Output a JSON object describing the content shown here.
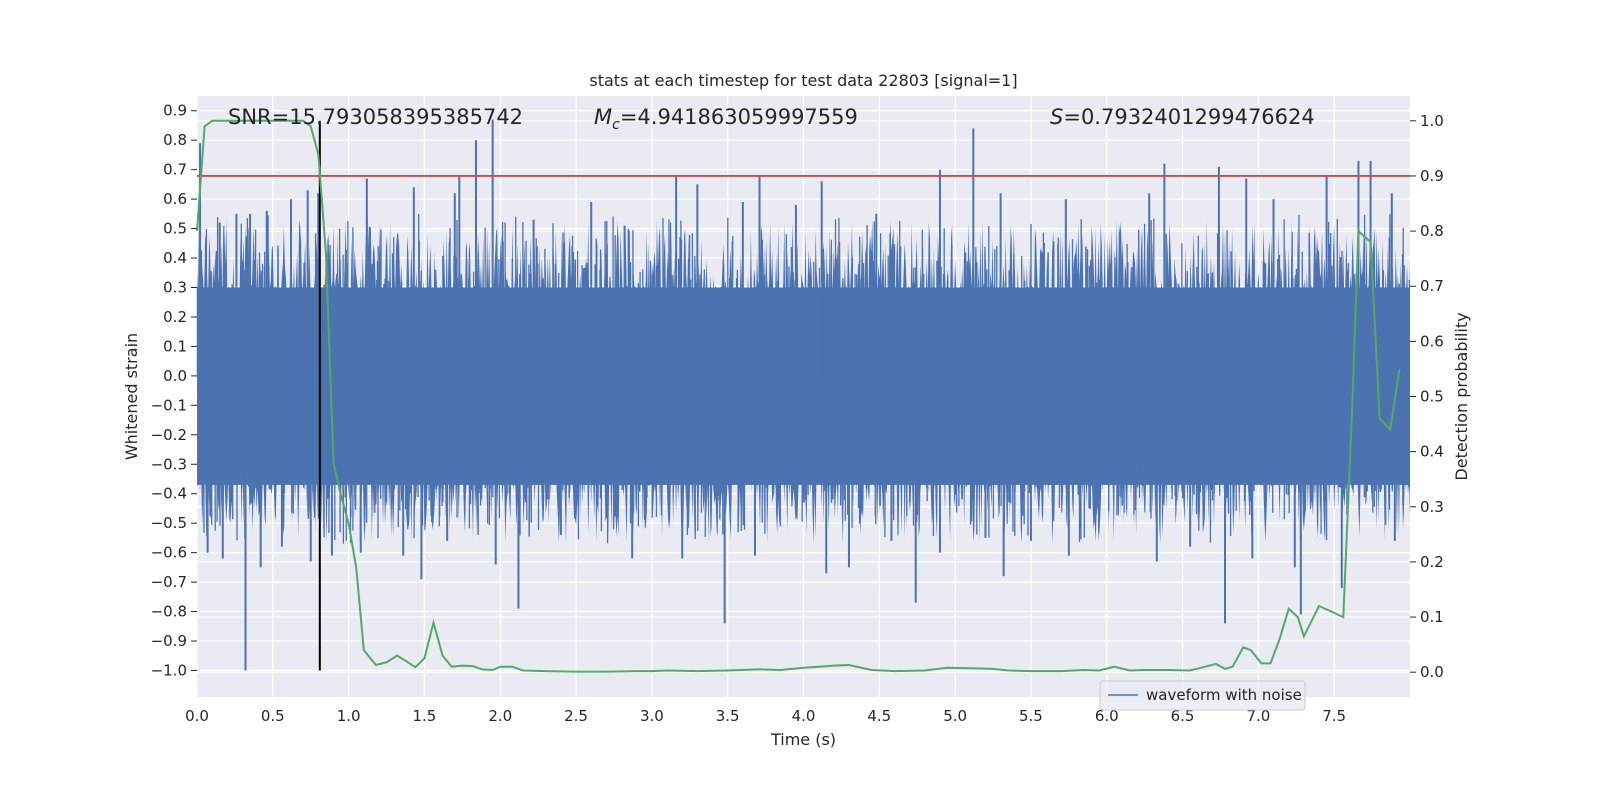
{
  "chart_data": {
    "type": "line",
    "title": "stats at each timestep for test data 22803 [signal=1]",
    "xlabel": "Time (s)",
    "ylabel": "Whitened strain",
    "y2label": "Detection probability",
    "xlim": [
      0,
      8.0
    ],
    "ylim": [
      -1.09,
      0.95
    ],
    "y2lim": [
      -0.045,
      1.045
    ],
    "xticks": [
      0.0,
      0.5,
      1.0,
      1.5,
      2.0,
      2.5,
      3.0,
      3.5,
      4.0,
      4.5,
      5.0,
      5.5,
      6.0,
      6.5,
      7.0,
      7.5
    ],
    "xtick_labels": [
      "0.0",
      "0.5",
      "1.0",
      "1.5",
      "2.0",
      "2.5",
      "3.0",
      "3.5",
      "4.0",
      "4.5",
      "5.0",
      "5.5",
      "6.0",
      "6.5",
      "7.0",
      "7.5"
    ],
    "yticks": [
      0.9,
      0.8,
      0.7,
      0.6,
      0.5,
      0.4,
      0.3,
      0.2,
      0.1,
      0.0,
      -0.1,
      -0.2,
      -0.3,
      -0.4,
      -0.5,
      -0.6,
      -0.7,
      -0.8,
      -0.9,
      -1.0
    ],
    "ytick_labels": [
      "0.9",
      "0.8",
      "0.7",
      "0.6",
      "0.5",
      "0.4",
      "0.3",
      "0.2",
      "0.1",
      "0.0",
      "−0.1",
      "−0.2",
      "−0.3",
      "−0.4",
      "−0.5",
      "−0.6",
      "−0.7",
      "−0.8",
      "−0.9",
      "−1.0"
    ],
    "y2ticks": [
      1.0,
      0.9,
      0.8,
      0.7,
      0.6,
      0.5,
      0.4,
      0.3,
      0.2,
      0.1,
      0.0
    ],
    "y2tick_labels": [
      "1.0",
      "0.9",
      "0.8",
      "0.7",
      "0.6",
      "0.5",
      "0.4",
      "0.3",
      "0.2",
      "0.1",
      "0.0"
    ],
    "annotations": {
      "snr": "SNR=15.793058395385742",
      "mc_symbol": "M",
      "mc_sub": "c",
      "mc_value": "=4.941863059997559",
      "s_symbol": "S",
      "s_value": "=0.7932401299476624"
    },
    "threshold": {
      "value": 0.9,
      "axis": "y2",
      "color": "#c44e52"
    },
    "marker_time": 0.81,
    "series": [
      {
        "name": "waveform with noise",
        "axis": "y1",
        "color": "#4c72b0",
        "envelope_typical": {
          "top": 0.3,
          "bottom": -0.37
        },
        "peaks": [
          [
            0.02,
            0.79
          ],
          [
            0.15,
            0.52
          ],
          [
            0.26,
            0.55
          ],
          [
            0.35,
            0.55
          ],
          [
            0.46,
            0.56
          ],
          [
            0.62,
            0.6
          ],
          [
            0.73,
            0.63
          ],
          [
            0.8,
            0.62
          ],
          [
            1.12,
            0.67
          ],
          [
            1.43,
            0.64
          ],
          [
            1.7,
            0.62
          ],
          [
            1.73,
            0.68
          ],
          [
            1.84,
            0.8
          ],
          [
            1.95,
            0.87
          ],
          [
            2.22,
            0.53
          ],
          [
            2.6,
            0.59
          ],
          [
            2.82,
            0.51
          ],
          [
            3.16,
            0.68
          ],
          [
            3.3,
            0.65
          ],
          [
            3.6,
            0.59
          ],
          [
            3.71,
            0.68
          ],
          [
            3.95,
            0.58
          ],
          [
            4.12,
            0.66
          ],
          [
            4.48,
            0.55
          ],
          [
            4.9,
            0.7
          ],
          [
            5.12,
            0.84
          ],
          [
            5.3,
            0.62
          ],
          [
            5.73,
            0.6
          ],
          [
            6.28,
            0.62
          ],
          [
            6.38,
            0.72
          ],
          [
            6.74,
            0.71
          ],
          [
            6.92,
            0.67
          ],
          [
            7.1,
            0.6
          ],
          [
            7.45,
            0.68
          ],
          [
            7.66,
            0.73
          ],
          [
            7.74,
            0.73
          ],
          [
            7.88,
            0.62
          ]
        ],
        "troughs": [
          [
            0.07,
            -0.6
          ],
          [
            0.17,
            -0.62
          ],
          [
            0.32,
            -1.0
          ],
          [
            0.42,
            -0.65
          ],
          [
            0.56,
            -0.58
          ],
          [
            0.75,
            -0.63
          ],
          [
            0.89,
            -0.61
          ],
          [
            1.08,
            -0.6
          ],
          [
            1.36,
            -0.61
          ],
          [
            1.48,
            -0.69
          ],
          [
            1.65,
            -0.56
          ],
          [
            1.97,
            -0.64
          ],
          [
            2.12,
            -0.79
          ],
          [
            2.4,
            -0.54
          ],
          [
            2.87,
            -0.62
          ],
          [
            3.2,
            -0.62
          ],
          [
            3.48,
            -0.84
          ],
          [
            3.68,
            -0.61
          ],
          [
            4.15,
            -0.67
          ],
          [
            4.3,
            -0.65
          ],
          [
            4.58,
            -0.56
          ],
          [
            4.74,
            -0.77
          ],
          [
            4.9,
            -0.6
          ],
          [
            5.2,
            -0.55
          ],
          [
            5.32,
            -0.68
          ],
          [
            5.5,
            -0.56
          ],
          [
            5.75,
            -0.61
          ],
          [
            6.33,
            -0.63
          ],
          [
            6.55,
            -0.58
          ],
          [
            6.78,
            -0.84
          ],
          [
            6.96,
            -0.62
          ],
          [
            7.24,
            -0.65
          ],
          [
            7.28,
            -0.81
          ],
          [
            7.55,
            -0.72
          ],
          [
            7.9,
            -0.56
          ]
        ]
      },
      {
        "name": "Detection probability",
        "axis": "y2",
        "color": "#55a868",
        "x": [
          0.0,
          0.05,
          0.1,
          0.2,
          0.3,
          0.4,
          0.5,
          0.6,
          0.7,
          0.75,
          0.8,
          0.85,
          0.9,
          0.95,
          1.0,
          1.05,
          1.1,
          1.18,
          1.25,
          1.32,
          1.38,
          1.44,
          1.5,
          1.56,
          1.62,
          1.68,
          1.75,
          1.82,
          1.88,
          1.95,
          2.0,
          2.08,
          2.15,
          2.3,
          2.5,
          2.7,
          2.9,
          3.0,
          3.1,
          3.3,
          3.5,
          3.7,
          3.85,
          4.0,
          4.1,
          4.2,
          4.3,
          4.45,
          4.6,
          4.8,
          4.95,
          5.1,
          5.25,
          5.35,
          5.5,
          5.7,
          5.85,
          5.95,
          6.05,
          6.15,
          6.25,
          6.4,
          6.55,
          6.65,
          6.72,
          6.78,
          6.83,
          6.9,
          6.95,
          7.02,
          7.08,
          7.14,
          7.2,
          7.26,
          7.3,
          7.4,
          7.48,
          7.56,
          7.62,
          7.66,
          7.7,
          7.74,
          7.8,
          7.87,
          7.93
        ],
        "values": [
          0.8,
          0.99,
          1.0,
          1.0,
          1.0,
          1.0,
          1.0,
          1.0,
          1.0,
          0.99,
          0.94,
          0.76,
          0.38,
          0.32,
          0.27,
          0.19,
          0.04,
          0.013,
          0.018,
          0.03,
          0.02,
          0.009,
          0.025,
          0.09,
          0.03,
          0.01,
          0.012,
          0.011,
          0.005,
          0.004,
          0.01,
          0.01,
          0.003,
          0.002,
          0.001,
          0.001,
          0.002,
          0.002,
          0.003,
          0.002,
          0.003,
          0.005,
          0.004,
          0.008,
          0.01,
          0.012,
          0.013,
          0.004,
          0.002,
          0.003,
          0.008,
          0.007,
          0.006,
          0.003,
          0.002,
          0.002,
          0.004,
          0.003,
          0.01,
          0.003,
          0.004,
          0.004,
          0.003,
          0.01,
          0.015,
          0.006,
          0.01,
          0.045,
          0.04,
          0.016,
          0.016,
          0.06,
          0.115,
          0.1,
          0.065,
          0.12,
          0.11,
          0.1,
          0.49,
          0.8,
          0.79,
          0.78,
          0.46,
          0.44,
          0.55
        ]
      }
    ],
    "legend": {
      "label": "waveform with noise",
      "location": "lower-right",
      "color": "#4c72b0"
    },
    "grid": true
  }
}
